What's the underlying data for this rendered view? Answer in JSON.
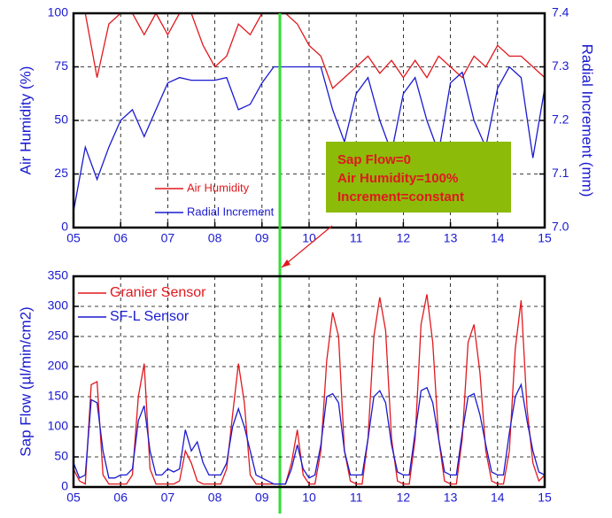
{
  "chart_data": [
    {
      "type": "line",
      "ylabel": "Air Humidity (%)",
      "y2label": "Radial Increment (mm)",
      "x": [
        5,
        5.25,
        5.5,
        5.75,
        6,
        6.25,
        6.5,
        6.75,
        7,
        7.25,
        7.5,
        7.75,
        8,
        8.25,
        8.5,
        8.75,
        9,
        9.25,
        9.5,
        9.75,
        10,
        10.25,
        10.5,
        10.75,
        11,
        11.25,
        11.5,
        11.75,
        12,
        12.25,
        12.5,
        12.75,
        13,
        13.25,
        13.5,
        13.75,
        14,
        14.25,
        14.5,
        14.75,
        15
      ],
      "series": [
        {
          "name": "Air Humidity",
          "color": "#e0191e",
          "values": [
            100,
            100,
            70,
            95,
            100,
            100,
            90,
            100,
            90,
            100,
            100,
            85,
            75,
            80,
            95,
            90,
            100,
            100,
            100,
            95,
            85,
            80,
            65,
            70,
            75,
            80,
            72,
            78,
            70,
            78,
            70,
            80,
            75,
            70,
            80,
            75,
            85,
            80,
            80,
            75,
            70
          ]
        },
        {
          "name": "Radial Increment",
          "color": "#1a1ad0",
          "axis": "y2",
          "values": [
            7.03,
            7.15,
            7.09,
            7.15,
            7.2,
            7.22,
            7.17,
            7.22,
            7.27,
            7.28,
            7.275,
            7.275,
            7.275,
            7.28,
            7.22,
            7.23,
            7.27,
            7.3,
            7.3,
            7.3,
            7.3,
            7.3,
            7.22,
            7.16,
            7.25,
            7.28,
            7.2,
            7.14,
            7.25,
            7.28,
            7.2,
            7.14,
            7.27,
            7.29,
            7.2,
            7.15,
            7.26,
            7.3,
            7.28,
            7.13,
            7.26
          ]
        }
      ],
      "xlim": [
        5,
        15
      ],
      "xticks": [
        {
          "value": 5,
          "label": "05"
        },
        {
          "value": 6,
          "label": "06"
        },
        {
          "value": 7,
          "label": "07"
        },
        {
          "value": 8,
          "label": "08"
        },
        {
          "value": 9,
          "label": "09"
        },
        {
          "value": 10,
          "label": "10"
        },
        11,
        12,
        13,
        14,
        15
      ],
      "ylim": [
        0,
        100
      ],
      "yticks": [
        0,
        25,
        50,
        75,
        100
      ],
      "y2lim": [
        7.0,
        7.4
      ],
      "y2ticks": [
        {
          "value": 7.0,
          "label": "7.0"
        },
        7.1,
        7.2,
        7.3,
        7.4
      ],
      "grid": true,
      "vline": {
        "x": 9.38,
        "color": "#33dd33"
      },
      "annotation": [
        "Sap Flow=0",
        "Air Humidity=100%",
        "Increment=constant"
      ]
    },
    {
      "type": "line",
      "ylabel": "Sap Flow (µl/min/cm2)",
      "x": [
        5,
        5.125,
        5.25,
        5.375,
        5.5,
        5.625,
        5.75,
        5.875,
        6,
        6.125,
        6.25,
        6.375,
        6.5,
        6.625,
        6.75,
        6.875,
        7,
        7.125,
        7.25,
        7.375,
        7.5,
        7.625,
        7.75,
        7.875,
        8,
        8.125,
        8.25,
        8.375,
        8.5,
        8.625,
        8.75,
        8.875,
        9,
        9.125,
        9.25,
        9.375,
        9.5,
        9.625,
        9.75,
        9.875,
        10,
        10.125,
        10.25,
        10.375,
        10.5,
        10.625,
        10.75,
        10.875,
        11,
        11.125,
        11.25,
        11.375,
        11.5,
        11.625,
        11.75,
        11.875,
        12,
        12.125,
        12.25,
        12.375,
        12.5,
        12.625,
        12.75,
        12.875,
        13,
        13.125,
        13.25,
        13.375,
        13.5,
        13.625,
        13.75,
        13.875,
        14,
        14.125,
        14.25,
        14.375,
        14.5,
        14.625,
        14.75,
        14.875,
        15
      ],
      "series": [
        {
          "name": "Granier Sensor",
          "color": "#e0191e",
          "values": [
            30,
            10,
            5,
            170,
            175,
            20,
            5,
            5,
            5,
            5,
            20,
            150,
            205,
            30,
            5,
            5,
            5,
            5,
            10,
            60,
            40,
            10,
            5,
            5,
            5,
            5,
            30,
            120,
            205,
            140,
            20,
            5,
            5,
            5,
            5,
            5,
            5,
            40,
            95,
            20,
            5,
            5,
            60,
            210,
            290,
            250,
            60,
            10,
            5,
            5,
            80,
            250,
            315,
            260,
            80,
            10,
            5,
            5,
            80,
            270,
            320,
            240,
            80,
            10,
            5,
            5,
            80,
            240,
            270,
            190,
            60,
            10,
            5,
            5,
            60,
            230,
            310,
            130,
            40,
            10,
            20
          ]
        },
        {
          "name": "SF-L Sensor",
          "color": "#1a1ad0",
          "values": [
            40,
            15,
            20,
            145,
            140,
            60,
            15,
            15,
            20,
            20,
            30,
            110,
            135,
            60,
            20,
            20,
            30,
            25,
            30,
            95,
            60,
            75,
            40,
            20,
            20,
            20,
            40,
            100,
            130,
            100,
            60,
            20,
            15,
            10,
            5,
            5,
            5,
            30,
            70,
            30,
            15,
            20,
            70,
            150,
            155,
            140,
            60,
            20,
            20,
            20,
            80,
            150,
            160,
            140,
            70,
            25,
            20,
            20,
            90,
            160,
            165,
            140,
            80,
            25,
            20,
            20,
            90,
            150,
            155,
            120,
            70,
            25,
            20,
            20,
            90,
            150,
            170,
            110,
            60,
            25,
            20
          ]
        }
      ],
      "xlim": [
        5,
        15
      ],
      "xticks": [
        {
          "value": 5,
          "label": "05"
        },
        {
          "value": 6,
          "label": "06"
        },
        {
          "value": 7,
          "label": "07"
        },
        {
          "value": 8,
          "label": "08"
        },
        {
          "value": 9,
          "label": "09"
        },
        {
          "value": 10,
          "label": "10"
        },
        11,
        12,
        13,
        14,
        15
      ],
      "ylim": [
        0,
        350
      ],
      "yticks": [
        0,
        50,
        100,
        150,
        200,
        250,
        300,
        350
      ],
      "grid": true
    }
  ]
}
